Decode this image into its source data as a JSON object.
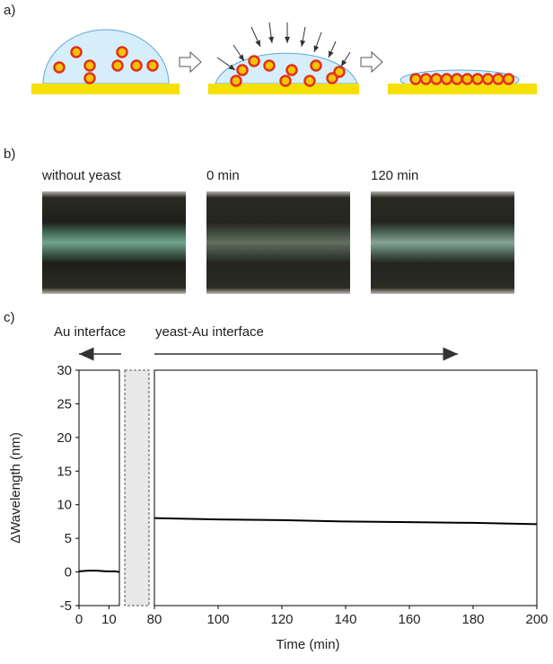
{
  "panel_labels": [
    "a)",
    "b)",
    "c)"
  ],
  "photo_labels": [
    "without yeast",
    "0 min",
    "120 min"
  ],
  "chart_data": {
    "type": "line",
    "ylabel": "ΔWavelength (nm)",
    "xlabel": "Time (min)",
    "annotations": [
      "Au interface",
      "yeast-Au interface"
    ],
    "ylim": [
      -5,
      30
    ],
    "yticks": [
      -5,
      0,
      5,
      10,
      15,
      20,
      25,
      30
    ],
    "color": "#000000",
    "panels": [
      {
        "xlim": [
          0,
          13.5
        ],
        "xticks": [
          0,
          10
        ],
        "x": [
          0,
          3,
          6,
          9,
          12,
          13.5
        ],
        "values": [
          0.1,
          0.2,
          0.2,
          0.1,
          0.1,
          0.0
        ]
      },
      {
        "xlim": [
          80,
          200
        ],
        "xticks": [
          80,
          100,
          120,
          140,
          160,
          180,
          200
        ],
        "x": [
          80,
          100,
          120,
          140,
          160,
          180,
          200
        ],
        "values": [
          8.0,
          7.8,
          7.7,
          7.5,
          7.4,
          7.3,
          7.1
        ]
      }
    ]
  }
}
